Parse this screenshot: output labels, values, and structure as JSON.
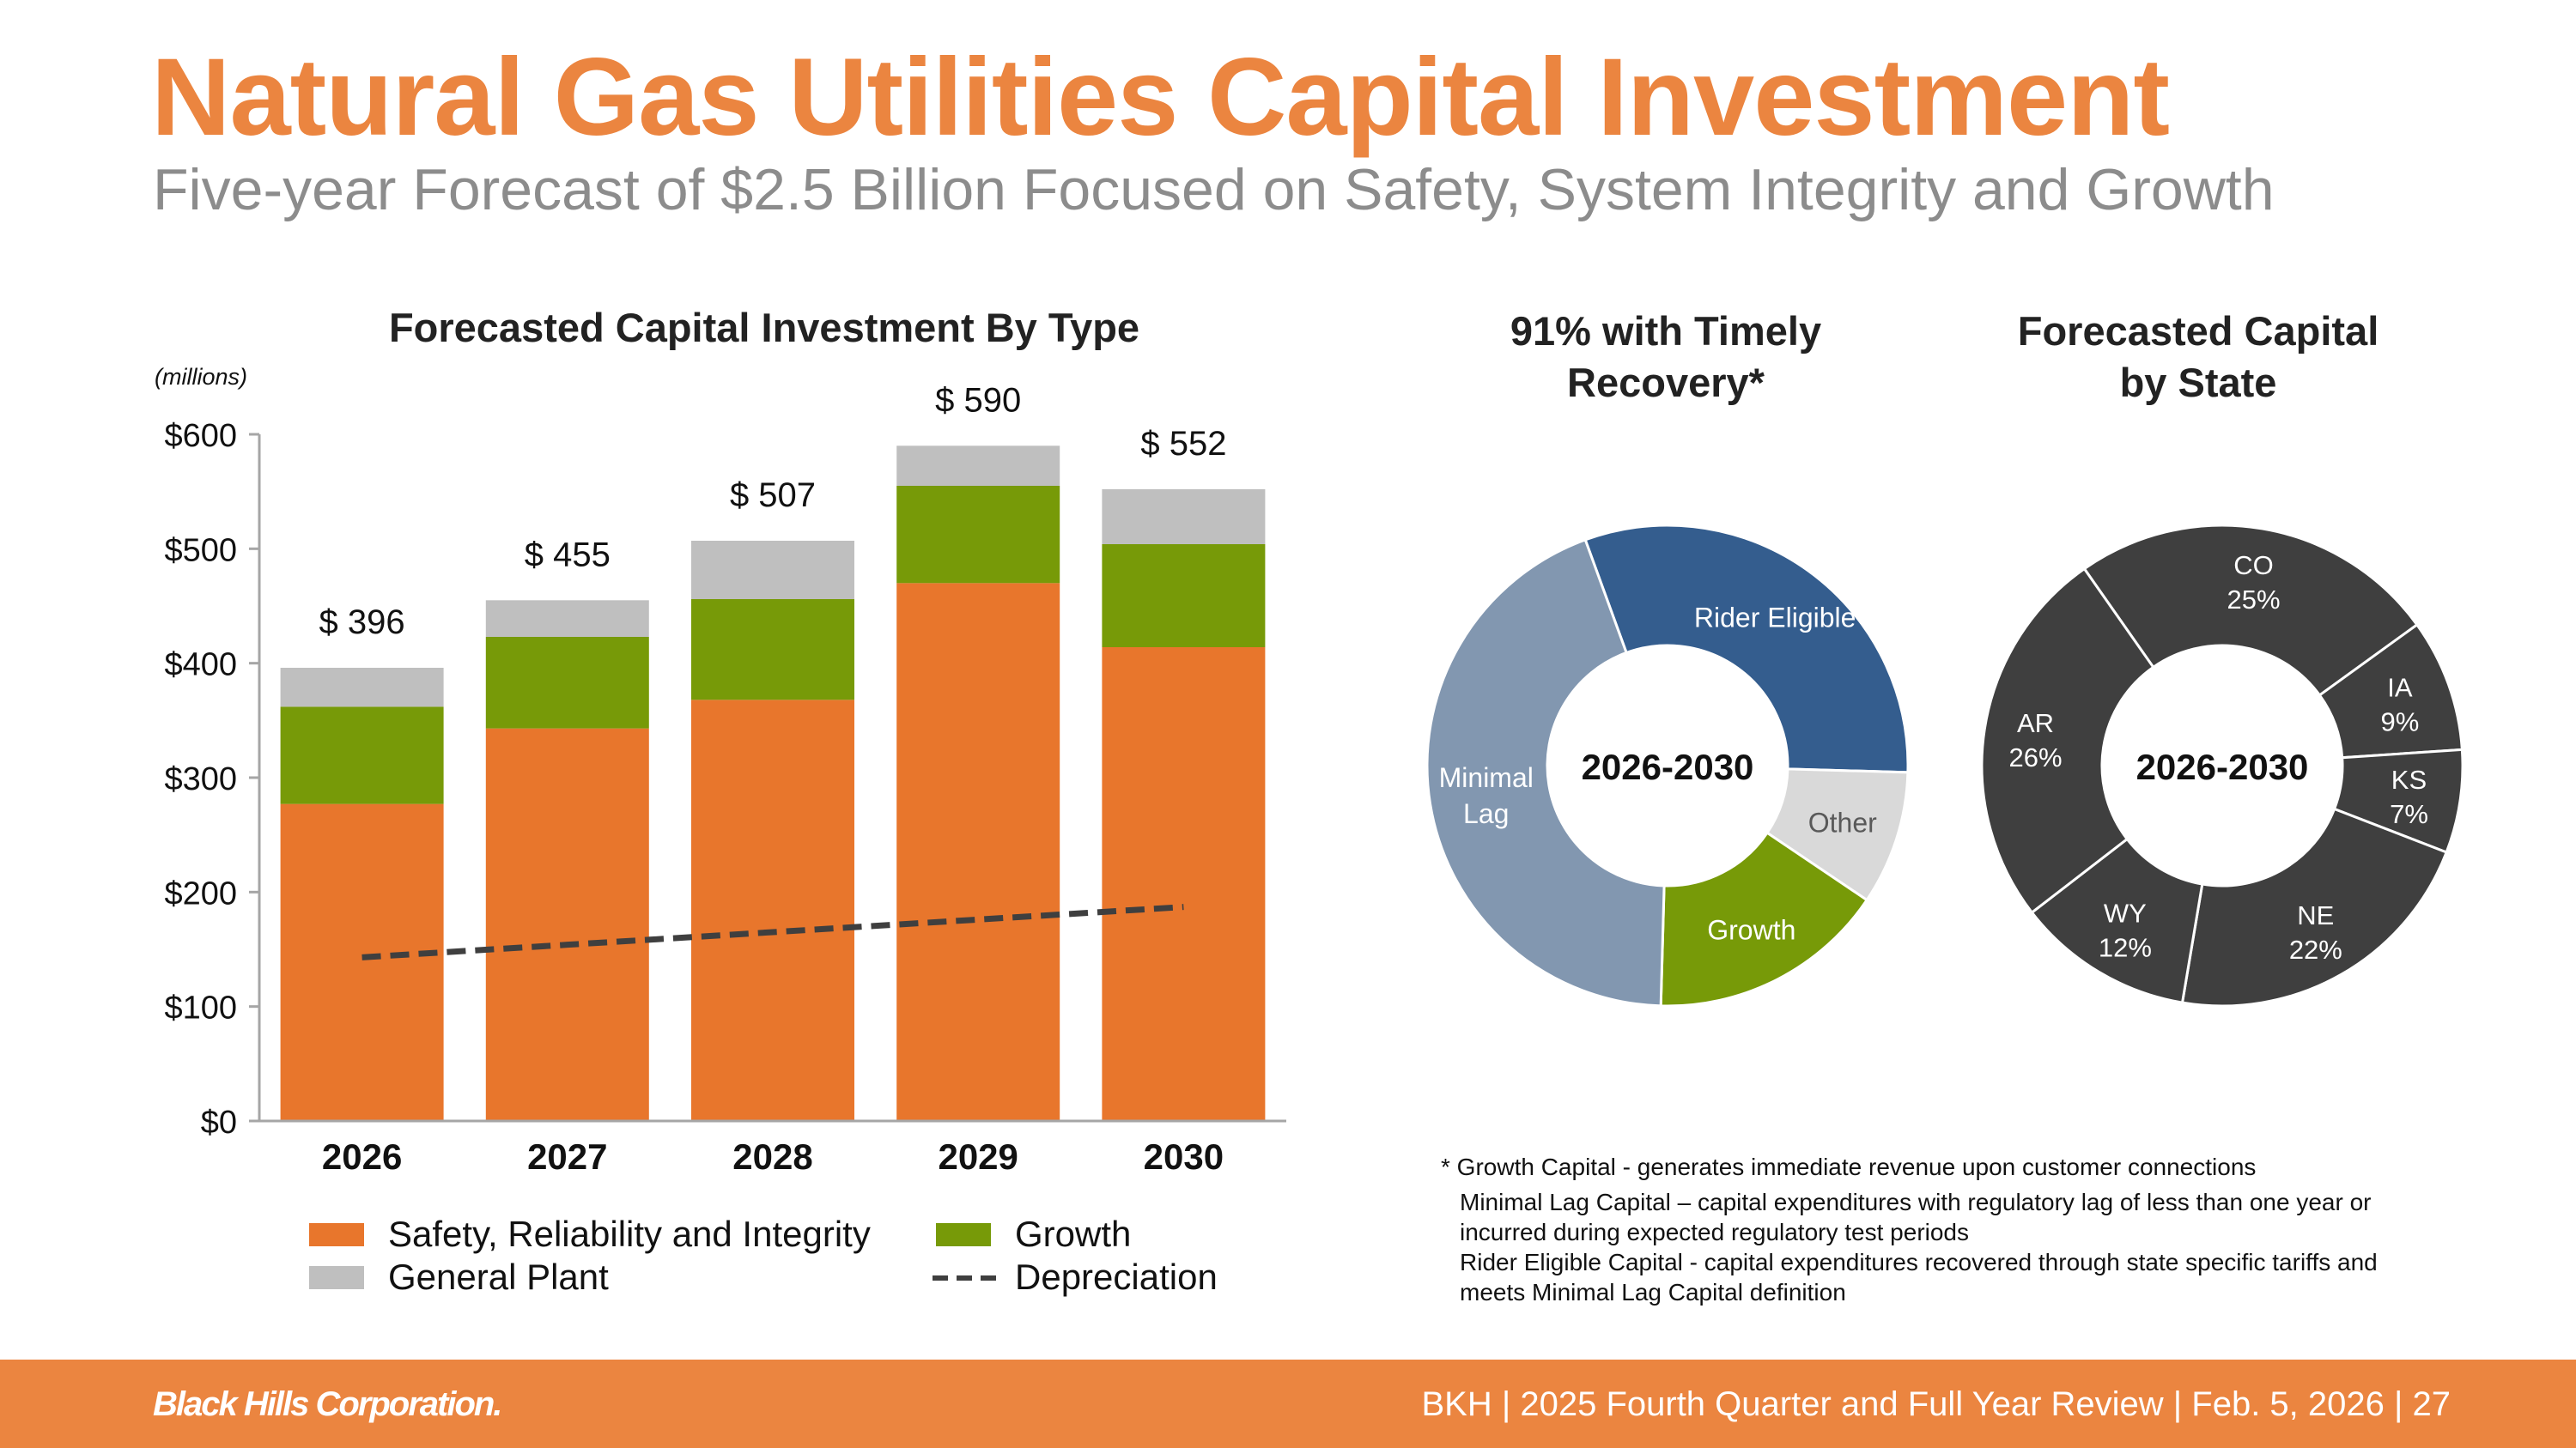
{
  "header": {
    "title": "Natural Gas Utilities Capital Investment",
    "subtitle": "Five-year Forecast of $2.5 Billion Focused on Safety, System Integrity and Growth"
  },
  "colors": {
    "orange": "#E8762C",
    "green": "#779A08",
    "gray": "#BFBFBF",
    "dark": "#3F3F3F",
    "blue": "#345D8E",
    "lightblue": "#8297B0",
    "lightgray": "#D9D9D9"
  },
  "chart_data": [
    {
      "type": "bar",
      "stacked": true,
      "title": "Forecasted Capital Investment By Type",
      "unit_note": "(millions)",
      "categories": [
        "2026",
        "2027",
        "2028",
        "2029",
        "2030"
      ],
      "ylim": [
        0,
        600
      ],
      "yticks": [
        0,
        100,
        200,
        300,
        400,
        500,
        600
      ],
      "ytick_labels": [
        "$0",
        "$100",
        "$200",
        "$300",
        "$400",
        "$500",
        "$600"
      ],
      "series": [
        {
          "name": "Safety, Reliability and Integrity",
          "color": "#E8762C",
          "values": [
            277,
            343,
            368,
            470,
            414
          ]
        },
        {
          "name": "Growth",
          "color": "#779A08",
          "values": [
            85,
            80,
            88,
            85,
            90
          ]
        },
        {
          "name": "General Plant",
          "color": "#BFBFBF",
          "values": [
            34,
            32,
            51,
            35,
            48
          ]
        }
      ],
      "totals": [
        396,
        455,
        507,
        590,
        552
      ],
      "total_labels": [
        "$ 396",
        "$ 455",
        "$ 507",
        "$ 590",
        "$ 552"
      ],
      "line": {
        "name": "Depreciation",
        "style": "dashed",
        "color": "#3F3F3F",
        "values": [
          143,
          154,
          165,
          176,
          187
        ]
      },
      "legend": [
        {
          "label": "Safety, Reliability and Integrity",
          "kind": "box",
          "color": "#E8762C"
        },
        {
          "label": "Growth",
          "kind": "box",
          "color": "#779A08"
        },
        {
          "label": "General Plant",
          "kind": "box",
          "color": "#BFBFBF"
        },
        {
          "label": "Depreciation",
          "kind": "dash",
          "color": "#3F3F3F"
        }
      ]
    },
    {
      "type": "pie",
      "donut": true,
      "title": "91% with Timely Recovery*",
      "title_lines": [
        "91% with Timely",
        "Recovery*"
      ],
      "center_label": "2026-2030",
      "slices": [
        {
          "label": "Rider Eligible",
          "value": 31,
          "color": "#345D8E",
          "text_color": "#ffffff"
        },
        {
          "label": "Other",
          "value": 9,
          "color": "#D9D9D9",
          "text_color": "#595959"
        },
        {
          "label": "Growth",
          "value": 16,
          "color": "#779A08",
          "text_color": "#ffffff"
        },
        {
          "label": "Minimal Lag",
          "label_lines": [
            "Minimal",
            "Lag"
          ],
          "value": 44,
          "color": "#8297B0",
          "text_color": "#ffffff"
        }
      ]
    },
    {
      "type": "pie",
      "donut": true,
      "title": "Forecasted Capital by State",
      "title_lines": [
        "Forecasted Capital",
        "by State"
      ],
      "center_label": "2026-2030",
      "slices": [
        {
          "label": "CO",
          "pct_label": "25%",
          "value": 25
        },
        {
          "label": "IA",
          "pct_label": "9%",
          "value": 9
        },
        {
          "label": "KS",
          "pct_label": "7%",
          "value": 7
        },
        {
          "label": "NE",
          "pct_label": "22%",
          "value": 22
        },
        {
          "label": "WY",
          "pct_label": "12%",
          "value": 12
        },
        {
          "label": "AR",
          "pct_label": "26%",
          "value": 26
        }
      ]
    }
  ],
  "footnotes": {
    "line1": "* Growth Capital - generates immediate revenue upon customer connections",
    "line2": "Minimal Lag Capital – capital expenditures with regulatory lag of less than one year or",
    "line3": "incurred during expected regulatory test periods",
    "line4": "Rider Eligible Capital - capital expenditures recovered through state specific tariffs and",
    "line5": "meets Minimal Lag Capital definition"
  },
  "footer": {
    "logo": "Black Hills Corporation.",
    "text": "BKH  |  2025 Fourth Quarter and Full Year Review  |  Feb. 5, 2026  |  27"
  }
}
